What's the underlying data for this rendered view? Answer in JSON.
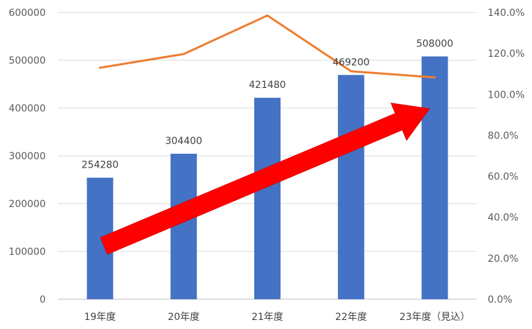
{
  "chart_data": {
    "type": "bar",
    "categories": [
      "19年度",
      "20年度",
      "21年度",
      "22年度",
      "23年度（見込）"
    ],
    "series": [
      {
        "kind": "bar",
        "axis": "left",
        "values": [
          254280,
          304400,
          421480,
          469200,
          508000
        ],
        "data_labels": [
          "254280",
          "304400",
          "421480",
          "469200",
          "508000"
        ],
        "color": "#4472C4"
      },
      {
        "kind": "line",
        "axis": "right",
        "values": [
          113.0,
          119.7,
          138.5,
          111.3,
          108.3
        ],
        "color": "#ED7D31"
      }
    ],
    "y_left": {
      "range": [
        0,
        600000
      ],
      "ticks": [
        0,
        100000,
        200000,
        300000,
        400000,
        500000,
        600000
      ],
      "tick_labels": [
        "0",
        "100000",
        "200000",
        "300000",
        "400000",
        "500000",
        "600000"
      ]
    },
    "y_right": {
      "range": [
        0,
        140
      ],
      "ticks": [
        0,
        20,
        40,
        60,
        80,
        100,
        120,
        140
      ],
      "tick_labels": [
        "0.0%",
        "20.0%",
        "40.0%",
        "60.0%",
        "80.0%",
        "100.0%",
        "120.0%",
        "140.0%"
      ]
    },
    "grid": true,
    "legend": "none",
    "annotation": {
      "shape": "arrow",
      "color": "#FF0000",
      "direction": "up-right",
      "from_category": "19年度",
      "to_category": "23年度（見込）"
    }
  }
}
